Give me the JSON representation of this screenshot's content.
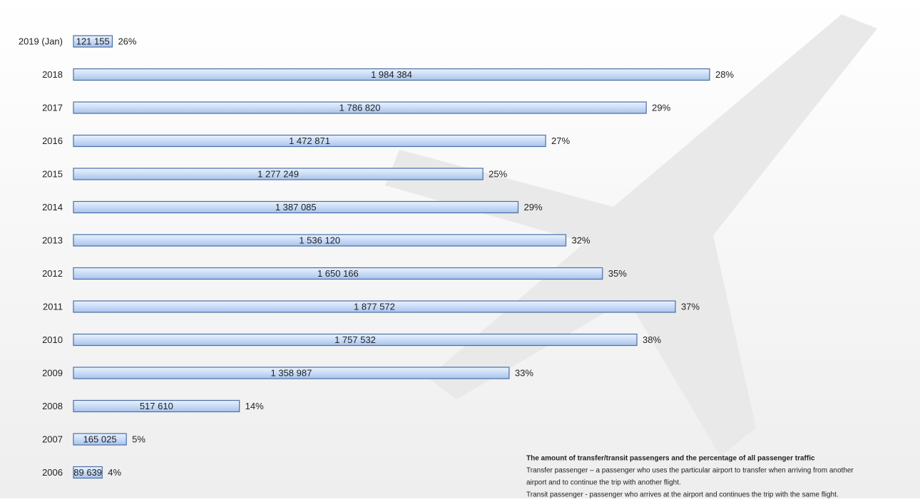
{
  "chart_data": {
    "type": "hbar",
    "categories": [
      "2019 (Jan)",
      "2018",
      "2017",
      "2016",
      "2015",
      "2014",
      "2013",
      "2012",
      "2011",
      "2010",
      "2009",
      "2008",
      "2007",
      "2006"
    ],
    "values": [
      121155,
      1984384,
      1786820,
      1472871,
      1277249,
      1387085,
      1536120,
      1650166,
      1877572,
      1757532,
      1358987,
      517610,
      165025,
      89639
    ],
    "value_labels": [
      "121 155",
      "1 984 384",
      "1 786 820",
      "1 472 871",
      "1 277 249",
      "1 387 085",
      "1 536 120",
      "1 650 166",
      "1 877 572",
      "1 757 532",
      "1 358 987",
      "517 610",
      "165 025",
      "89 639"
    ],
    "shares": [
      26,
      28,
      29,
      27,
      25,
      29,
      32,
      35,
      37,
      38,
      33,
      14,
      5,
      4
    ],
    "share_labels": [
      "26%",
      "28%",
      "29%",
      "27%",
      "25%",
      "29%",
      "32%",
      "35%",
      "37%",
      "38%",
      "33%",
      "14%",
      "5%",
      "4%"
    ],
    "color": "#c9dcf7",
    "border_color": "#4a6fa8",
    "xlim": [
      0,
      2000000
    ],
    "notes": [
      "The amount of transfer/transit passengers and the percentage of all passenger traffic",
      "Transfer passenger – a passenger who uses the particular airport to transfer when arriving from another",
      "airport and to continue the trip with another flight.",
      "Transit passenger - passenger who arrives at the airport and continues the trip with the same flight."
    ]
  }
}
